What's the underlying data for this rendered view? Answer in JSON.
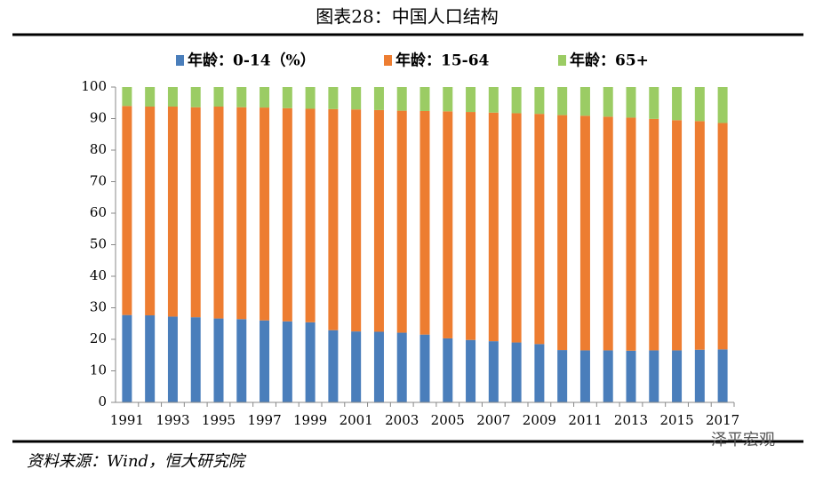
{
  "chart_data": {
    "type": "stacked_bar",
    "title": "图表28：中国人口结构",
    "categories": [
      "1991",
      null,
      "1993",
      null,
      "1995",
      null,
      "1997",
      null,
      "1999",
      null,
      "2001",
      null,
      "2003",
      null,
      "2005",
      null,
      "2007",
      null,
      "2009",
      null,
      "2011",
      null,
      "2013",
      null,
      "2015",
      null,
      "2017"
    ],
    "series": [
      {
        "name": "年龄：0-14（%）",
        "color": "#4a7ebb",
        "values": [
          27.7,
          27.6,
          27.2,
          27.0,
          26.6,
          26.4,
          26.0,
          25.7,
          25.4,
          22.9,
          22.5,
          22.4,
          22.1,
          21.5,
          20.3,
          19.8,
          19.4,
          19.0,
          18.5,
          16.6,
          16.5,
          16.5,
          16.4,
          16.5,
          16.5,
          16.7,
          16.8
        ]
      },
      {
        "name": "年龄：15-64",
        "color": "#ed7d31",
        "values": [
          66.3,
          66.2,
          66.6,
          66.6,
          67.2,
          67.2,
          67.5,
          67.6,
          67.7,
          70.1,
          70.4,
          70.3,
          70.4,
          70.9,
          72.0,
          72.3,
          72.5,
          72.7,
          73.0,
          74.5,
          74.4,
          74.1,
          73.9,
          73.4,
          73.0,
          72.5,
          71.8
        ]
      },
      {
        "name": "年龄：65+",
        "color": "#9bcc64",
        "values": [
          6.0,
          6.2,
          6.2,
          6.4,
          6.2,
          6.4,
          6.5,
          6.7,
          6.9,
          7.0,
          7.1,
          7.3,
          7.5,
          7.6,
          7.7,
          7.9,
          8.1,
          8.3,
          8.5,
          8.9,
          9.1,
          9.4,
          9.7,
          10.1,
          10.5,
          10.8,
          11.4
        ]
      }
    ],
    "ylim": [
      0,
      100
    ],
    "yticks": [
      0,
      10,
      20,
      30,
      40,
      50,
      60,
      70,
      80,
      90,
      100
    ],
    "source": "资料来源：Wind，恒大研究院",
    "watermark": "泽平宏观"
  }
}
